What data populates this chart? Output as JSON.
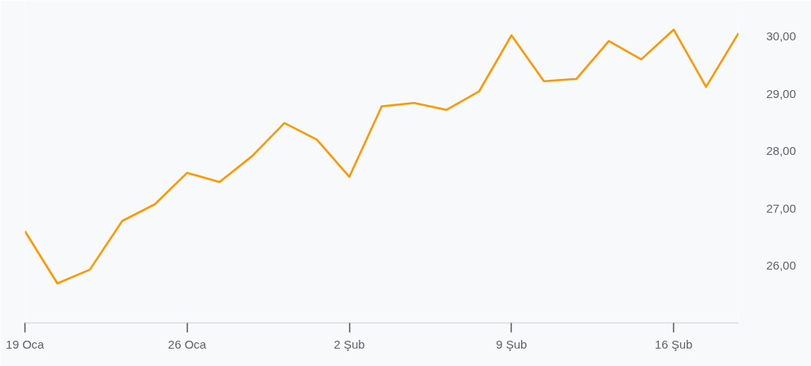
{
  "chart_data": {
    "type": "line",
    "categories": [
      "19 Oca",
      null,
      null,
      null,
      null,
      "26 Oca",
      null,
      null,
      null,
      null,
      "2 Şub",
      null,
      null,
      null,
      null,
      "9 Şub",
      null,
      null,
      null,
      null,
      "16 Şub",
      null,
      null
    ],
    "series": [
      {
        "color": "#ff9800",
        "values": [
          26.6,
          25.69,
          25.93,
          26.78,
          27.07,
          27.62,
          27.46,
          27.91,
          28.49,
          28.2,
          27.55,
          28.78,
          28.84,
          28.72,
          29.04,
          30.02,
          29.22,
          29.26,
          29.92,
          29.6,
          30.12,
          29.12,
          30.06
        ]
      }
    ],
    "ylim": [
      25.0,
      30.63
    ],
    "yticks": [
      {
        "value": 26,
        "label": "26,00"
      },
      {
        "value": 27,
        "label": "27,00"
      },
      {
        "value": 28,
        "label": "28,00"
      },
      {
        "value": 29,
        "label": "29,00"
      },
      {
        "value": 30,
        "label": "30,00"
      }
    ],
    "line_style": "solid"
  }
}
